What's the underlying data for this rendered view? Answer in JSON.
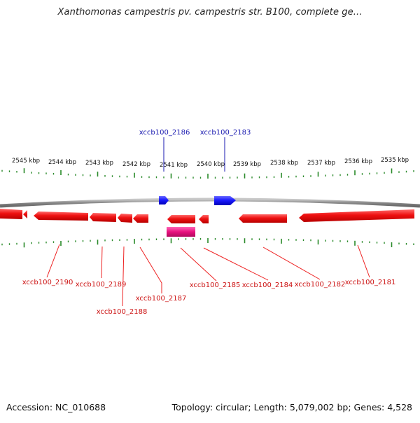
{
  "title": "Xanthomonas campestris pv. campestris str. B100, complete ge...",
  "footer": {
    "accession": "Accession: NC_010688",
    "summary": "Topology: circular; Length: 5,079,002 bp; Genes: 4,528"
  },
  "scale_labels": [
    "2545 kbp",
    "2544 kbp",
    "2543 kbp",
    "2542 kbp",
    "2541 kbp",
    "2540 kbp",
    "2539 kbp",
    "2538 kbp",
    "2537 kbp",
    "2536 kbp",
    "2535 kbp"
  ],
  "genes_top": [
    "xccb100_2186",
    "xccb100_2183"
  ],
  "genes_bottom": [
    "xccb100_2190",
    "xccb100_2189",
    "xccb100_2188",
    "xccb100_2187",
    "xccb100_2185",
    "xccb100_2184",
    "xccb100_2182",
    "xccb100_2181"
  ],
  "colors": {
    "forward_gene": "#1a1aff",
    "reverse_gene": "#ee1111",
    "other_feature": "#e8127e",
    "backbone": "#8a8a8a",
    "ticks": "#2a8a2a",
    "forward_label": "#1a1ab0",
    "reverse_label": "#cc1111"
  }
}
